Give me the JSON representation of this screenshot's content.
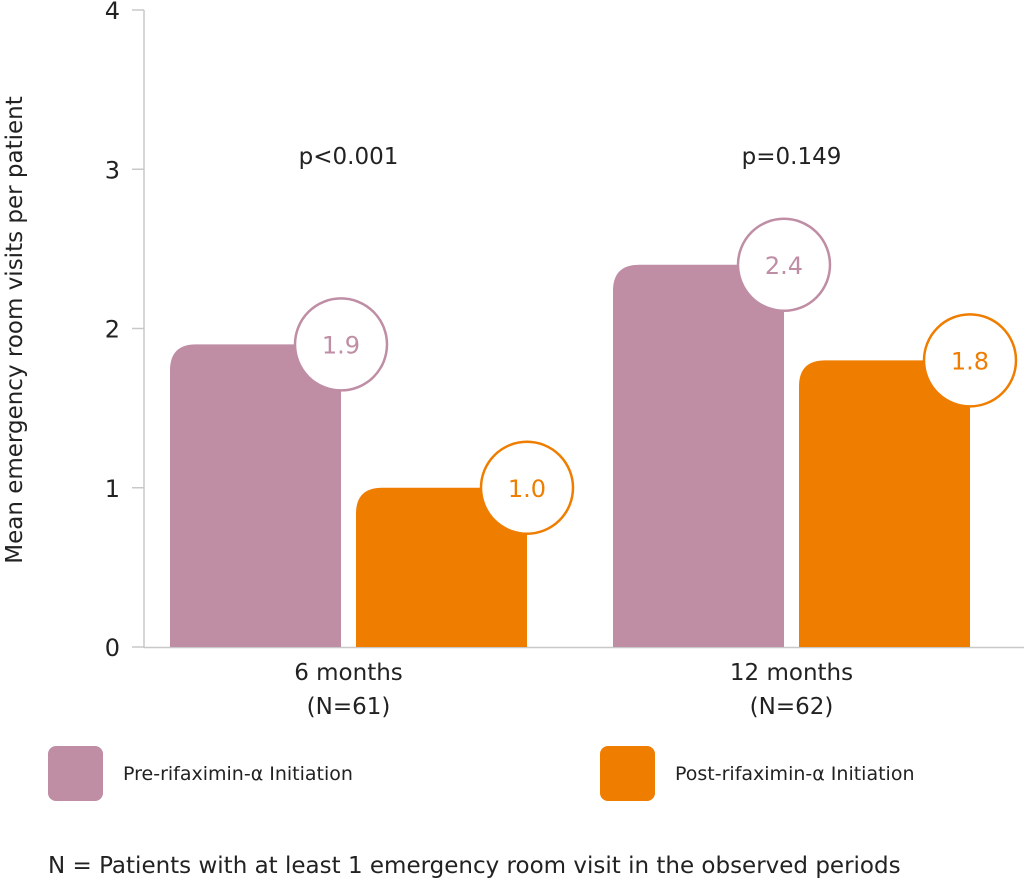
{
  "chart_data": {
    "type": "bar",
    "categories": [
      "6 months",
      "12 months"
    ],
    "category_sublabels": [
      "(N=61)",
      "(N=62)"
    ],
    "series": [
      {
        "name": "Pre-rifaximin-α Initiation",
        "values": [
          1.9,
          2.4
        ],
        "color": "#bf8da4"
      },
      {
        "name": "Post-rifaximin-α Initiation",
        "values": [
          1.0,
          1.8
        ],
        "color": "#ef7d00"
      }
    ],
    "value_labels": [
      [
        "1.9",
        "2.4"
      ],
      [
        "1.0",
        "1.8"
      ]
    ],
    "annotations": [
      "p<0.001",
      "p=0.149"
    ],
    "ylabel": "Mean emergency room visits per patient",
    "xlabel": "",
    "ylim": [
      0,
      4
    ],
    "yticks": [
      "0",
      "1",
      "2",
      "3",
      "4"
    ],
    "grid": false,
    "legend_position": "bottom"
  },
  "footnote": "N = Patients with at least 1 emergency room visit in the observed periods"
}
